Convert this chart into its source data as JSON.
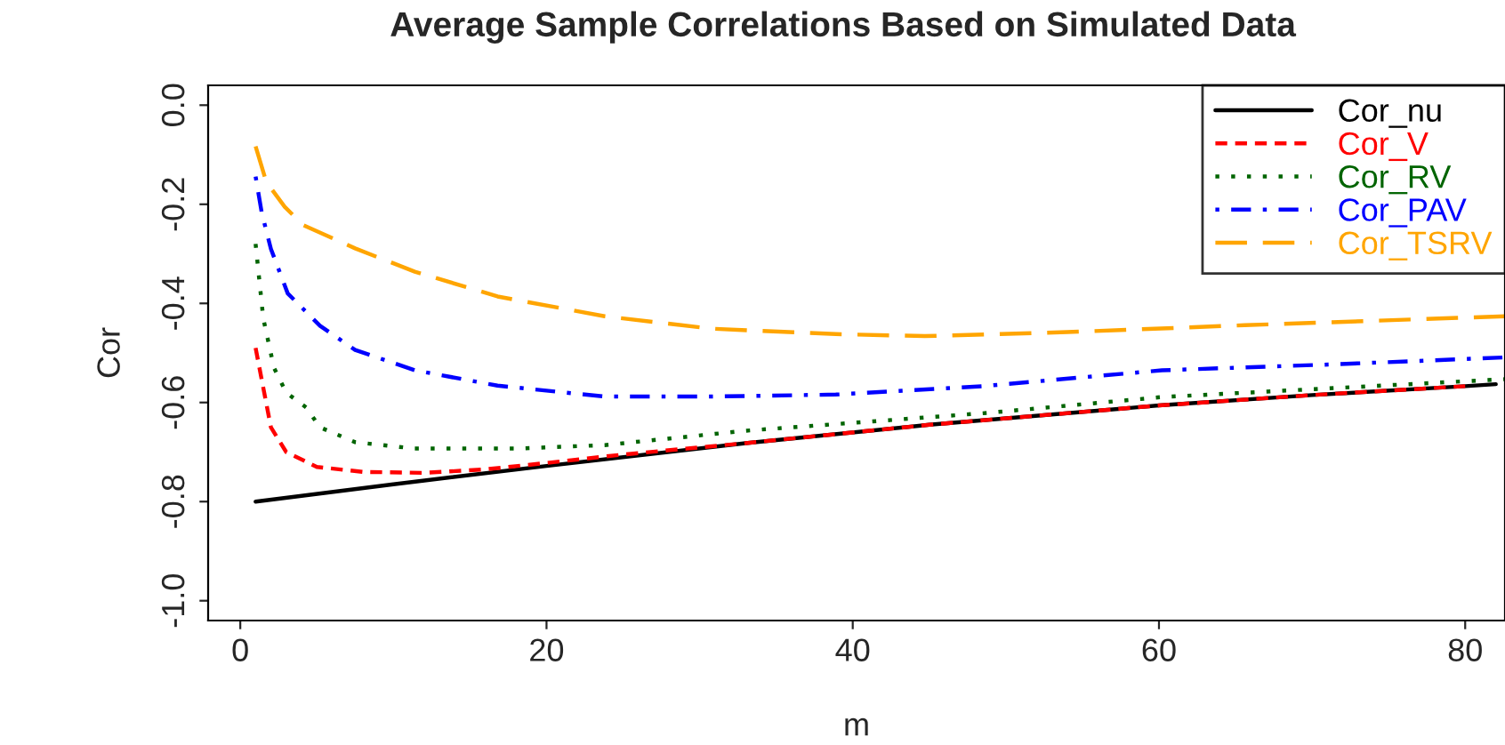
{
  "chart_data": {
    "type": "line",
    "title": "Average Sample Correlations Based on Simulated Data",
    "xlabel": "m",
    "ylabel": "Cor",
    "xlim": [
      -2.1,
      82.6
    ],
    "ylim": [
      -1.04,
      0.04
    ],
    "xticks": [
      0,
      20,
      40,
      60,
      80
    ],
    "yticks": [
      {
        "value": 0,
        "label": "0.0"
      },
      -0.2,
      -0.4,
      -0.6,
      -0.8,
      {
        "value": -1,
        "label": "-1.0"
      }
    ],
    "grid": false,
    "legend": "top right",
    "series": [
      {
        "name": "Cor_nu",
        "color": "#000000",
        "line_style": "solid",
        "x": [
          1,
          10,
          20,
          33,
          45,
          60,
          70,
          80,
          82
        ],
        "values": [
          -0.8,
          -0.765,
          -0.728,
          -0.682,
          -0.645,
          -0.606,
          -0.585,
          -0.567,
          -0.563
        ]
      },
      {
        "name": "Cor_V",
        "color": "#ff0000",
        "line_style": "dashed",
        "x": [
          1,
          2,
          3,
          5,
          8,
          12,
          16,
          20,
          25,
          33,
          45,
          60,
          70,
          80
        ],
        "values": [
          -0.49,
          -0.65,
          -0.7,
          -0.73,
          -0.74,
          -0.742,
          -0.735,
          -0.722,
          -0.705,
          -0.682,
          -0.645,
          -0.606,
          -0.585,
          -0.567
        ]
      },
      {
        "name": "Cor_RV",
        "color": "#006400",
        "line_style": "dotted",
        "x": [
          1,
          1.5,
          2.2,
          3,
          4.3,
          5.2,
          7.5,
          11.4,
          18,
          23.8,
          33,
          48.8,
          60.2,
          80.7,
          82.6
        ],
        "values": [
          -0.28,
          -0.43,
          -0.53,
          -0.58,
          -0.61,
          -0.65,
          -0.68,
          -0.693,
          -0.693,
          -0.686,
          -0.657,
          -0.621,
          -0.589,
          -0.556,
          -0.553
        ]
      },
      {
        "name": "Cor_PAV",
        "color": "#0000ff",
        "line_style": "dashdot",
        "x": [
          1,
          1.4,
          2,
          3.1,
          5.2,
          7.5,
          11.4,
          16.8,
          23.8,
          30.8,
          38.9,
          48.5,
          60.2,
          71.4,
          82.6
        ],
        "values": [
          -0.144,
          -0.217,
          -0.29,
          -0.38,
          -0.445,
          -0.494,
          -0.535,
          -0.566,
          -0.588,
          -0.588,
          -0.584,
          -0.567,
          -0.535,
          -0.523,
          -0.509
        ]
      },
      {
        "name": "Cor_TSRV",
        "color": "#ffa500",
        "line_style": "longdash",
        "x": [
          1,
          1.7,
          2.9,
          4.1,
          7.5,
          11.4,
          16.8,
          23.8,
          30.8,
          38.9,
          44.7,
          54,
          65.6,
          82.6
        ],
        "values": [
          -0.083,
          -0.155,
          -0.205,
          -0.242,
          -0.289,
          -0.336,
          -0.386,
          -0.426,
          -0.451,
          -0.462,
          -0.466,
          -0.458,
          -0.444,
          -0.426
        ]
      }
    ]
  }
}
